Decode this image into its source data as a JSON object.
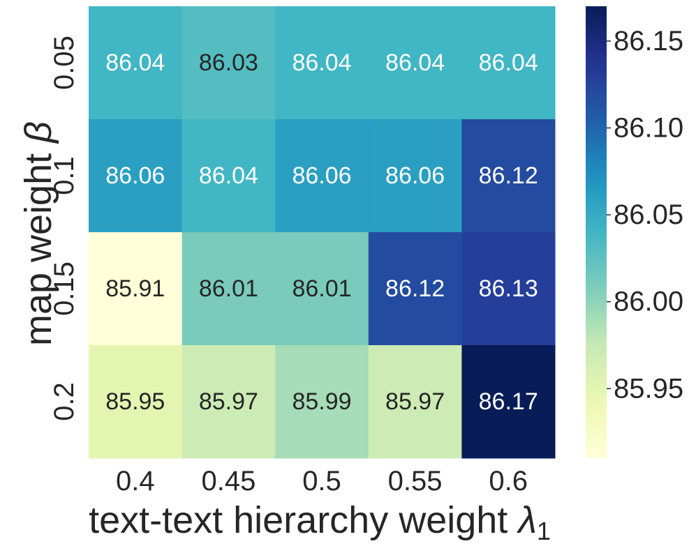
{
  "chart_data": {
    "type": "heatmap",
    "xlabel": "text-text hierarchy weight",
    "xlabel_symbol": "λ",
    "xlabel_subscript": "1",
    "ylabel": "map weight",
    "ylabel_symbol": "β",
    "x_categories": [
      "0.4",
      "0.45",
      "0.5",
      "0.55",
      "0.6"
    ],
    "y_categories": [
      "0.05",
      "0.1",
      "0.15",
      "0.2"
    ],
    "values": [
      [
        86.04,
        86.03,
        86.04,
        86.04,
        86.04
      ],
      [
        86.06,
        86.04,
        86.06,
        86.06,
        86.12
      ],
      [
        85.91,
        86.01,
        86.01,
        86.12,
        86.13
      ],
      [
        85.95,
        85.97,
        85.99,
        85.97,
        86.17
      ]
    ],
    "value_labels": [
      [
        "86.04",
        "86.03",
        "86.04",
        "86.04",
        "86.04"
      ],
      [
        "86.06",
        "86.04",
        "86.06",
        "86.06",
        "86.12"
      ],
      [
        "85.91",
        "86.01",
        "86.01",
        "86.12",
        "86.13"
      ],
      [
        "85.95",
        "85.97",
        "85.99",
        "85.97",
        "86.17"
      ]
    ],
    "colormap": "YlGnBu",
    "color_range": [
      85.91,
      86.17
    ],
    "colorbar_ticks": [
      85.95,
      86.0,
      86.05,
      86.1,
      86.15
    ],
    "colorbar_tick_labels": [
      "85.95",
      "86.00",
      "86.05",
      "86.10",
      "86.15"
    ],
    "colorbar_position": "right",
    "grid": false
  }
}
